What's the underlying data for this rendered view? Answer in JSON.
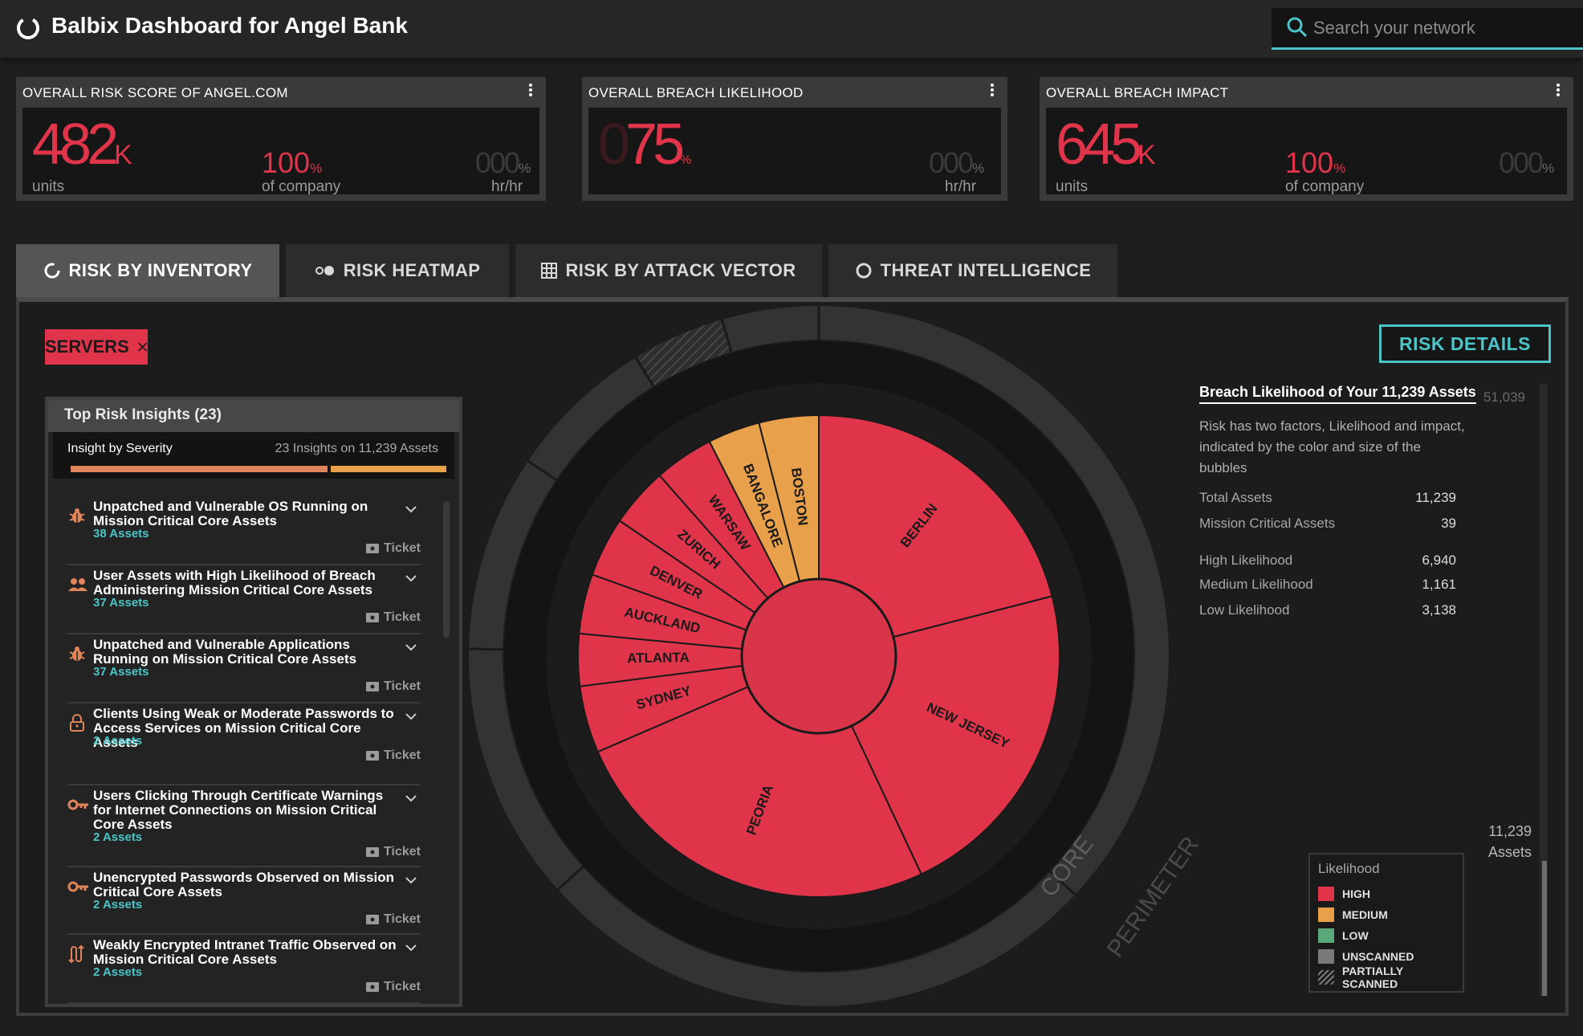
{
  "app": {
    "title": "Balbix Dashboard for Angel Bank"
  },
  "search": {
    "placeholder": "Search your network"
  },
  "cards": [
    {
      "title": "OVERALL RISK SCORE OF ANGEL.COM",
      "value": "482",
      "value_unit": "K",
      "value_sub": "units",
      "pct": "100",
      "pct_unit": "%",
      "pct_sub": "of company",
      "ghost": "000",
      "ghost_unit": "%",
      "ghost_sub": "hr/hr"
    },
    {
      "title": "OVERALL BREACH LIKELIHOOD",
      "value_ghost": "0",
      "value": "75",
      "value_unit": "%",
      "ghost": "000",
      "ghost_unit": "%",
      "ghost_sub": "hr/hr"
    },
    {
      "title": "OVERALL BREACH IMPACT",
      "value": "645",
      "value_unit": "K",
      "value_sub": "units",
      "pct": "100",
      "pct_unit": "%",
      "pct_sub": "of company",
      "ghost": "000",
      "ghost_unit": "%"
    }
  ],
  "tabs": [
    {
      "label": "RISK BY INVENTORY",
      "icon": "ring-icon"
    },
    {
      "label": "RISK HEATMAP",
      "icon": "dots-icon"
    },
    {
      "label": "RISK BY ATTACK VECTOR",
      "icon": "grid-icon"
    },
    {
      "label": "THREAT INTELLIGENCE",
      "icon": "circle-icon"
    }
  ],
  "filter_chip": {
    "label": "SERVERS"
  },
  "insights": {
    "title": "Top Risk Insights (23)",
    "severity_label": "Insight by Severity",
    "severity_count": "23 Insights on 11,239 Assets",
    "ticket_label": "Ticket",
    "items": [
      {
        "icon": "bug-icon",
        "title": "Unpatched and Vulnerable OS Running on Mission Critical Core Assets",
        "assets": "38 Assets"
      },
      {
        "icon": "users-icon",
        "title": "User Assets with High Likelihood of Breach Administering Mission Critical Core Assets",
        "assets": "37 Assets"
      },
      {
        "icon": "bug-icon",
        "title": "Unpatched and Vulnerable Applications Running on Mission Critical Core Assets",
        "assets": "37 Assets"
      },
      {
        "icon": "lock-icon",
        "title": "Clients Using Weak or Moderate Passwords to Access Services on Mission Critical Core Assets",
        "assets": "2 Assets"
      },
      {
        "icon": "key-icon",
        "title": "Users Clicking Through Certificate Warnings for Internet Connections on Mission Critical Core Assets",
        "assets": "2 Assets"
      },
      {
        "icon": "key-icon",
        "title": "Unencrypted Passwords Observed on Mission Critical Core Assets",
        "assets": "2 Assets"
      },
      {
        "icon": "traffic-icon",
        "title": "Weakly Encrypted Intranet Traffic Observed on Mission Critical Core Assets",
        "assets": "2 Assets"
      }
    ]
  },
  "chart": {
    "ring_labels": {
      "core": "CORE",
      "perimeter": "PERIMETER"
    },
    "slices": [
      {
        "name": "BERLIN",
        "share": 0.21,
        "likelihood": "HIGH"
      },
      {
        "name": "NEW JERSEY",
        "share": 0.22,
        "likelihood": "HIGH"
      },
      {
        "name": "PEORIA",
        "share": 0.255,
        "likelihood": "HIGH"
      },
      {
        "name": "SYDNEY",
        "share": 0.045,
        "likelihood": "HIGH"
      },
      {
        "name": "ATLANTA",
        "share": 0.035,
        "likelihood": "HIGH"
      },
      {
        "name": "AUCKLAND",
        "share": 0.04,
        "likelihood": "HIGH"
      },
      {
        "name": "DENVER",
        "share": 0.04,
        "likelihood": "HIGH"
      },
      {
        "name": "ZURICH",
        "share": 0.04,
        "likelihood": "HIGH"
      },
      {
        "name": "WARSAW",
        "share": 0.04,
        "likelihood": "HIGH"
      },
      {
        "name": "BANGALORE",
        "share": 0.035,
        "likelihood": "MEDIUM"
      },
      {
        "name": "BOSTON",
        "share": 0.04,
        "likelihood": "MEDIUM"
      }
    ]
  },
  "risk_details_button": "RISK DETAILS",
  "details": {
    "title": "Breach Likelihood of Your 11,239 Assets",
    "description": "Risk has two factors, Likelihood and impact, indicated by the color and size of the bubbles",
    "stats": [
      {
        "label": "Total Assets",
        "value": "11,239"
      },
      {
        "label": "Mission Critical Assets",
        "value": "39"
      },
      {
        "label": "High Likelihood",
        "value": "6,940"
      },
      {
        "label": "Medium Likelihood",
        "value": "1,161"
      },
      {
        "label": "Low Likelihood",
        "value": "3,138"
      }
    ],
    "axis_top": "51,039",
    "axis_bottom_value": "11,239",
    "axis_bottom_unit": "Assets",
    "axis_fill_fraction": 0.22
  },
  "legend": {
    "title": "Likelihood",
    "items": [
      {
        "label": "HIGH",
        "color": "#e0344a"
      },
      {
        "label": "MEDIUM",
        "color": "#e8a04a"
      },
      {
        "label": "LOW",
        "color": "#5aa878"
      },
      {
        "label": "UNSCANNED",
        "color": "#7a7a7a"
      },
      {
        "label": "PARTIALLY SCANNED",
        "color": "hatch"
      }
    ]
  },
  "colors": {
    "high": "#e0344a",
    "medium": "#e8a04a",
    "low": "#5aa878",
    "accent": "#4cc5c8"
  }
}
